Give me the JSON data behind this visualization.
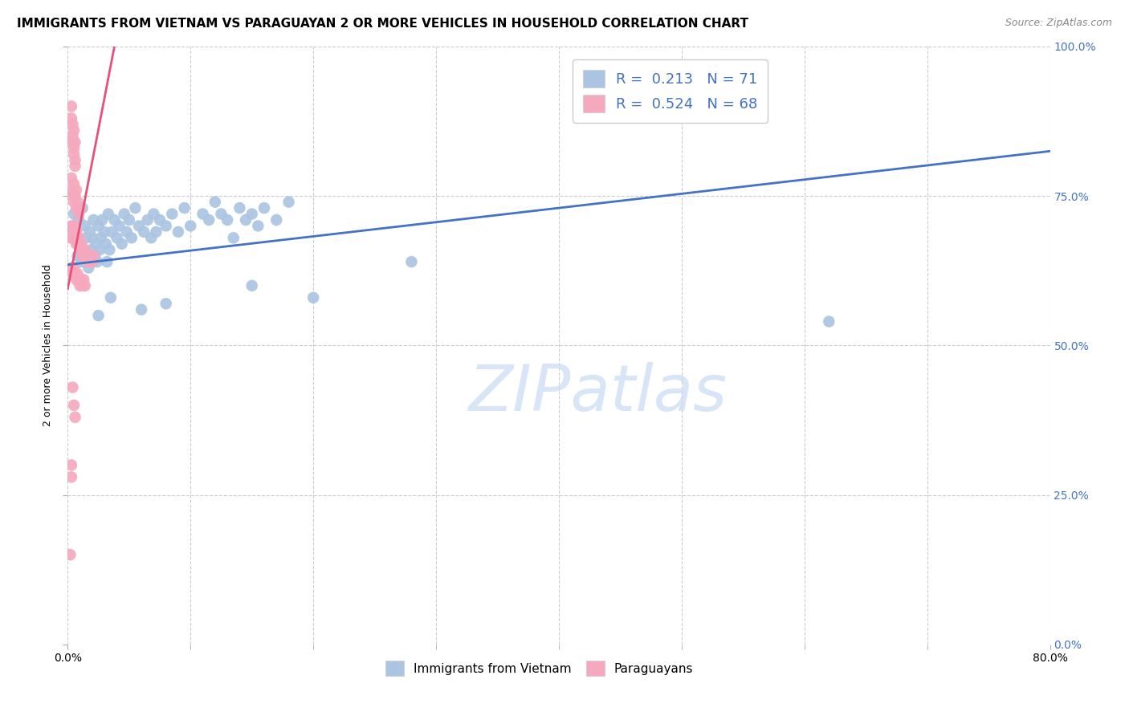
{
  "title": "IMMIGRANTS FROM VIETNAM VS PARAGUAYAN 2 OR MORE VEHICLES IN HOUSEHOLD CORRELATION CHART",
  "source": "Source: ZipAtlas.com",
  "xlim": [
    0,
    0.8
  ],
  "ylim": [
    0,
    1.0
  ],
  "xlabel_tick_vals": [
    0.0,
    0.8
  ],
  "xlabel_tick_labels": [
    "0.0%",
    "80.0%"
  ],
  "ylabel_tick_vals": [
    0.0,
    0.25,
    0.5,
    0.75,
    1.0
  ],
  "ylabel_tick_labels": [
    "0.0%",
    "25.0%",
    "50.0%",
    "75.0%",
    "100.0%"
  ],
  "vietnam_R": 0.213,
  "vietnam_N": 71,
  "paraguay_R": 0.524,
  "paraguay_N": 68,
  "vietnam_color": "#aac4e2",
  "paraguay_color": "#f5a8be",
  "trendline_vietnam_color": "#4472c4",
  "trendline_paraguay_color": "#e8507a",
  "legend_text_color": "#4472c4",
  "watermark_color": "#c8daf5",
  "background_color": "#ffffff",
  "grid_color": "#cccccc",
  "title_fontsize": 11,
  "axis_label_fontsize": 9,
  "tick_fontsize": 10,
  "right_tick_color": "#4472c4",
  "vietnam_trendline": [
    [
      0.0,
      0.635
    ],
    [
      0.8,
      0.825
    ]
  ],
  "paraguay_trendline": [
    [
      0.0,
      0.595
    ],
    [
      0.038,
      1.0
    ]
  ],
  "vietnam_points": [
    [
      0.005,
      0.72
    ],
    [
      0.007,
      0.68
    ],
    [
      0.008,
      0.65
    ],
    [
      0.009,
      0.71
    ],
    [
      0.01,
      0.67
    ],
    [
      0.011,
      0.64
    ],
    [
      0.012,
      0.73
    ],
    [
      0.013,
      0.66
    ],
    [
      0.014,
      0.7
    ],
    [
      0.015,
      0.68
    ],
    [
      0.016,
      0.65
    ],
    [
      0.017,
      0.63
    ],
    [
      0.018,
      0.69
    ],
    [
      0.019,
      0.66
    ],
    [
      0.02,
      0.68
    ],
    [
      0.021,
      0.71
    ],
    [
      0.022,
      0.65
    ],
    [
      0.023,
      0.67
    ],
    [
      0.024,
      0.64
    ],
    [
      0.025,
      0.7
    ],
    [
      0.026,
      0.66
    ],
    [
      0.027,
      0.68
    ],
    [
      0.028,
      0.71
    ],
    [
      0.03,
      0.69
    ],
    [
      0.031,
      0.67
    ],
    [
      0.032,
      0.64
    ],
    [
      0.033,
      0.72
    ],
    [
      0.034,
      0.66
    ],
    [
      0.036,
      0.69
    ],
    [
      0.038,
      0.71
    ],
    [
      0.04,
      0.68
    ],
    [
      0.042,
      0.7
    ],
    [
      0.044,
      0.67
    ],
    [
      0.046,
      0.72
    ],
    [
      0.048,
      0.69
    ],
    [
      0.05,
      0.71
    ],
    [
      0.052,
      0.68
    ],
    [
      0.055,
      0.73
    ],
    [
      0.058,
      0.7
    ],
    [
      0.062,
      0.69
    ],
    [
      0.065,
      0.71
    ],
    [
      0.068,
      0.68
    ],
    [
      0.07,
      0.72
    ],
    [
      0.072,
      0.69
    ],
    [
      0.075,
      0.71
    ],
    [
      0.08,
      0.7
    ],
    [
      0.085,
      0.72
    ],
    [
      0.09,
      0.69
    ],
    [
      0.095,
      0.73
    ],
    [
      0.1,
      0.7
    ],
    [
      0.11,
      0.72
    ],
    [
      0.115,
      0.71
    ],
    [
      0.12,
      0.74
    ],
    [
      0.125,
      0.72
    ],
    [
      0.13,
      0.71
    ],
    [
      0.135,
      0.68
    ],
    [
      0.14,
      0.73
    ],
    [
      0.145,
      0.71
    ],
    [
      0.15,
      0.72
    ],
    [
      0.155,
      0.7
    ],
    [
      0.16,
      0.73
    ],
    [
      0.17,
      0.71
    ],
    [
      0.18,
      0.74
    ],
    [
      0.025,
      0.55
    ],
    [
      0.035,
      0.58
    ],
    [
      0.06,
      0.56
    ],
    [
      0.08,
      0.57
    ],
    [
      0.15,
      0.6
    ],
    [
      0.2,
      0.58
    ],
    [
      0.28,
      0.64
    ],
    [
      0.62,
      0.54
    ]
  ],
  "paraguay_points": [
    [
      0.003,
      0.9
    ],
    [
      0.003,
      0.88
    ],
    [
      0.004,
      0.87
    ],
    [
      0.004,
      0.85
    ],
    [
      0.004,
      0.84
    ],
    [
      0.005,
      0.86
    ],
    [
      0.005,
      0.83
    ],
    [
      0.005,
      0.82
    ],
    [
      0.006,
      0.84
    ],
    [
      0.006,
      0.81
    ],
    [
      0.006,
      0.8
    ],
    [
      0.003,
      0.78
    ],
    [
      0.004,
      0.76
    ],
    [
      0.004,
      0.75
    ],
    [
      0.005,
      0.77
    ],
    [
      0.005,
      0.74
    ],
    [
      0.006,
      0.75
    ],
    [
      0.007,
      0.76
    ],
    [
      0.007,
      0.73
    ],
    [
      0.008,
      0.74
    ],
    [
      0.009,
      0.72
    ],
    [
      0.01,
      0.73
    ],
    [
      0.002,
      0.68
    ],
    [
      0.003,
      0.7
    ],
    [
      0.004,
      0.69
    ],
    [
      0.004,
      0.68
    ],
    [
      0.005,
      0.7
    ],
    [
      0.006,
      0.69
    ],
    [
      0.006,
      0.68
    ],
    [
      0.007,
      0.69
    ],
    [
      0.007,
      0.67
    ],
    [
      0.008,
      0.68
    ],
    [
      0.008,
      0.67
    ],
    [
      0.009,
      0.68
    ],
    [
      0.01,
      0.67
    ],
    [
      0.01,
      0.66
    ],
    [
      0.011,
      0.67
    ],
    [
      0.012,
      0.66
    ],
    [
      0.012,
      0.65
    ],
    [
      0.013,
      0.66
    ],
    [
      0.013,
      0.65
    ],
    [
      0.014,
      0.66
    ],
    [
      0.015,
      0.65
    ],
    [
      0.016,
      0.64
    ],
    [
      0.016,
      0.65
    ],
    [
      0.017,
      0.64
    ],
    [
      0.018,
      0.65
    ],
    [
      0.019,
      0.64
    ],
    [
      0.02,
      0.64
    ],
    [
      0.021,
      0.65
    ],
    [
      0.003,
      0.63
    ],
    [
      0.004,
      0.62
    ],
    [
      0.005,
      0.63
    ],
    [
      0.006,
      0.62
    ],
    [
      0.007,
      0.61
    ],
    [
      0.008,
      0.62
    ],
    [
      0.009,
      0.61
    ],
    [
      0.01,
      0.6
    ],
    [
      0.011,
      0.61
    ],
    [
      0.012,
      0.6
    ],
    [
      0.013,
      0.61
    ],
    [
      0.014,
      0.6
    ],
    [
      0.004,
      0.43
    ],
    [
      0.005,
      0.4
    ],
    [
      0.006,
      0.38
    ],
    [
      0.003,
      0.3
    ],
    [
      0.003,
      0.28
    ],
    [
      0.002,
      0.15
    ]
  ]
}
